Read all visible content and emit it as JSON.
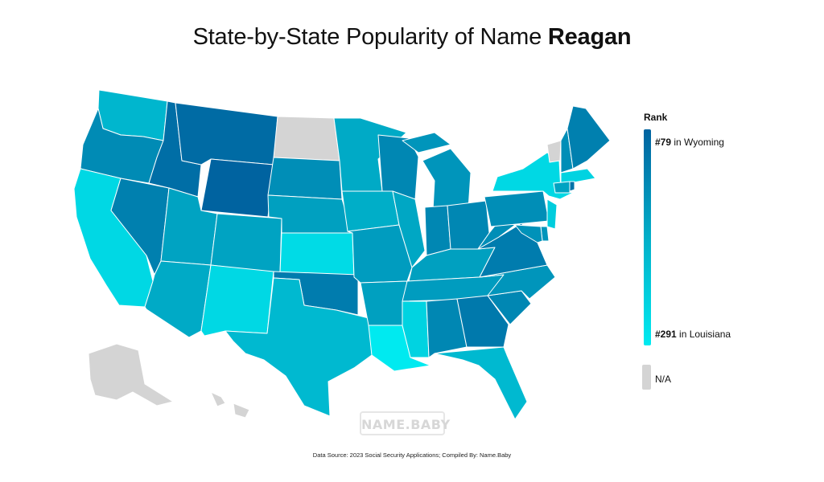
{
  "title": {
    "prefix": "State-by-State Popularity of Name ",
    "name": "Reagan"
  },
  "legend": {
    "title": "Rank",
    "top": {
      "rank": "#79",
      "suffix": " in Wyoming"
    },
    "bottom": {
      "rank": "#291",
      "suffix": " in Louisiana"
    },
    "na_label": "N/A",
    "colors": {
      "high": "#0063a0",
      "mid": "#00aec8",
      "low": "#00eaf0",
      "na": "#d4d4d4"
    }
  },
  "watermark": "NAME.BABY",
  "source": "Data Source: 2023 Social Security Applications; Compiled By: Name.Baby",
  "chart_data": {
    "type": "choropleth",
    "metric": "rank",
    "scale": {
      "best": 79,
      "worst": 291
    },
    "states": [
      {
        "code": "WA",
        "rank": 200
      },
      {
        "code": "OR",
        "rank": 135
      },
      {
        "code": "CA",
        "rank": 260
      },
      {
        "code": "NV",
        "rank": 120
      },
      {
        "code": "ID",
        "rank": 95
      },
      {
        "code": "MT",
        "rank": 90
      },
      {
        "code": "WY",
        "rank": 79
      },
      {
        "code": "UT",
        "rank": 170
      },
      {
        "code": "AZ",
        "rank": 180
      },
      {
        "code": "CO",
        "rank": 170
      },
      {
        "code": "NM",
        "rank": 260
      },
      {
        "code": "ND",
        "rank": null
      },
      {
        "code": "SD",
        "rank": 140
      },
      {
        "code": "NE",
        "rank": 165
      },
      {
        "code": "KS",
        "rank": 265
      },
      {
        "code": "OK",
        "rank": 115
      },
      {
        "code": "TX",
        "rank": 205
      },
      {
        "code": "MN",
        "rank": 180
      },
      {
        "code": "IA",
        "rank": 185
      },
      {
        "code": "MO",
        "rank": 160
      },
      {
        "code": "AR",
        "rank": 165
      },
      {
        "code": "LA",
        "rank": 291
      },
      {
        "code": "WI",
        "rank": 130
      },
      {
        "code": "IL",
        "rank": 175
      },
      {
        "code": "MI",
        "rank": 150
      },
      {
        "code": "IN",
        "rank": 130
      },
      {
        "code": "OH",
        "rank": 130
      },
      {
        "code": "KY",
        "rank": 165
      },
      {
        "code": "TN",
        "rank": 160
      },
      {
        "code": "MS",
        "rank": 250
      },
      {
        "code": "AL",
        "rank": 130
      },
      {
        "code": "GA",
        "rank": 110
      },
      {
        "code": "FL",
        "rank": 205
      },
      {
        "code": "SC",
        "rank": 130
      },
      {
        "code": "NC",
        "rank": 150
      },
      {
        "code": "VA",
        "rank": 115
      },
      {
        "code": "WV",
        "rank": 140
      },
      {
        "code": "PA",
        "rank": 140
      },
      {
        "code": "NY",
        "rank": 260
      },
      {
        "code": "VT",
        "rank": null
      },
      {
        "code": "NH",
        "rank": 140
      },
      {
        "code": "ME",
        "rank": 120
      },
      {
        "code": "MA",
        "rank": 250
      },
      {
        "code": "CT",
        "rank": 170
      },
      {
        "code": "RI",
        "rank": 100
      },
      {
        "code": "NJ",
        "rank": 240
      },
      {
        "code": "DE",
        "rank": 150
      },
      {
        "code": "MD",
        "rank": 145
      },
      {
        "code": "AK",
        "rank": null
      },
      {
        "code": "HI",
        "rank": null
      }
    ]
  }
}
